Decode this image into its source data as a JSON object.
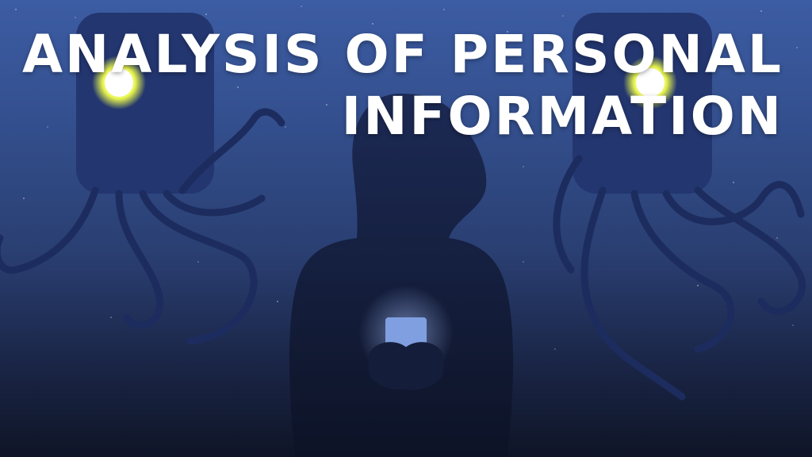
{
  "title": {
    "line1": "ANALYSIS OF PERSONAL",
    "line2": "INFORMATION"
  },
  "colors": {
    "sky_top": "#3c5ca3",
    "sky_bottom": "#0f1527",
    "silhouette": "#223468",
    "eye_glow": "#f2ff4a",
    "phone_glow": "#7f9fe0",
    "text": "#ffffff"
  },
  "scene": {
    "figures": [
      "robot-left",
      "person-with-phone",
      "robot-right"
    ]
  }
}
